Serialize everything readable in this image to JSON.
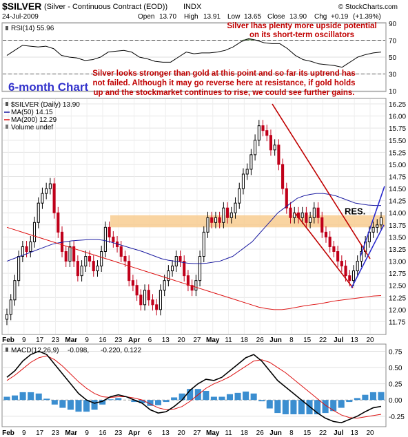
{
  "header": {
    "symbol": "$SILVER",
    "description": "(Silver - Continuous Contract (EOD))",
    "exchange": "INDX",
    "date": "24-Jul-2009",
    "quote": {
      "open_label": "Open",
      "open": "13.70",
      "high_label": "High",
      "high": "13.91",
      "low_label": "Low",
      "low": "13.65",
      "close_label": "Close",
      "close": "13.90",
      "chg_label": "Chg",
      "chg": "+0.19",
      "chg_pct": "(+1.39%)"
    },
    "watermark": "© StockCharts.com"
  },
  "annotations": {
    "rsi_note_1": "Silver lhas plenty more upside potential",
    "rsi_note_2": "on its short-term oscillators",
    "main_note_1": "Silver looks stronger than gold at this point and so far its uptrend has",
    "main_note_2": "not failed. Although it may go reverse here at resistance, if gold holds",
    "main_note_3": "up and the stockmarket continues to rise, we could see further gains.",
    "six_month": "6-month Chart",
    "res_label": "RES."
  },
  "legend": {
    "rsi": "RSI(14) 55.96",
    "price": "$SILVER (Daily) 13.90",
    "ma50": "MA(50) 14.15",
    "ma200": "MA(200) 12.29",
    "volume": "Volume undef",
    "macd_prefix": "MACD(12,26,9)",
    "macd_val": "-0.098,",
    "signal_val": "-0.220,",
    "hist_val": "0.122"
  },
  "colors": {
    "up": "#000000",
    "down": "#c0001a",
    "ma50": "#1a1aa0",
    "ma200": "#dd1111",
    "res_band": "#f7c98a",
    "channel_red": "#c00000",
    "channel_blue": "#2a2acc",
    "rsi_fill": "#4a7a3a",
    "hist": "#3b8ed0"
  },
  "chart_data": [
    {
      "type": "line",
      "title": "RSI(14)",
      "ylim": [
        10,
        90
      ],
      "y_ticks": [
        10,
        30,
        50,
        70,
        90
      ],
      "y_tick_labels": [
        "10",
        "30",
        "50",
        "70",
        "90"
      ],
      "overbought": 70,
      "oversold": 30,
      "values": [
        52,
        58,
        64,
        63,
        62,
        63,
        60,
        52,
        50,
        49,
        46,
        47,
        50,
        56,
        57,
        58,
        56,
        50,
        48,
        45,
        44,
        44,
        50,
        56,
        54,
        55,
        55,
        56,
        58,
        62,
        68,
        72,
        70,
        67,
        66,
        66,
        60,
        52,
        47,
        45,
        42,
        41,
        40,
        38,
        44,
        50,
        53,
        55,
        56
      ]
    },
    {
      "type": "candlestick",
      "title": "$SILVER (Daily)",
      "ylim": [
        11.5,
        16.35
      ],
      "y_ticks": [
        11.75,
        12.0,
        12.25,
        12.5,
        12.75,
        13.0,
        13.25,
        13.5,
        13.75,
        14.0,
        14.25,
        14.5,
        14.75,
        15.0,
        15.25,
        15.5,
        15.75,
        16.0,
        16.25
      ],
      "y_tick_labels": [
        "11.75",
        "12.00",
        "12.25",
        "12.50",
        "12.75",
        "13.00",
        "13.25",
        "13.50",
        "13.75",
        "14.00",
        "14.25",
        "14.50",
        "14.75",
        "15.00",
        "15.25",
        "15.50",
        "15.75",
        "16.00",
        "16.25"
      ],
      "x_tick_labels": [
        "Feb",
        "9",
        "17",
        "23",
        "Mar",
        "9",
        "16",
        "23",
        "Apr",
        "6",
        "13",
        "20",
        "27",
        "May",
        "11",
        "18",
        "26",
        "Jun",
        "8",
        "15",
        "22",
        "Jul",
        "13",
        "20"
      ],
      "resistance_band": [
        13.7,
        13.95
      ],
      "close": [
        11.9,
        12.2,
        12.6,
        13.1,
        13.3,
        13.2,
        13.4,
        13.8,
        14.2,
        14.4,
        14.5,
        14.6,
        14.0,
        13.6,
        13.2,
        13.0,
        13.3,
        13.0,
        12.7,
        12.9,
        13.1,
        13.0,
        12.8,
        12.9,
        13.2,
        13.7,
        13.5,
        13.4,
        13.3,
        13.1,
        13.0,
        12.6,
        12.5,
        12.3,
        12.1,
        12.4,
        12.2,
        12.1,
        12.0,
        12.4,
        12.6,
        12.8,
        12.9,
        13.1,
        13.0,
        12.7,
        12.5,
        12.4,
        12.6,
        13.1,
        13.6,
        13.9,
        13.8,
        13.9,
        13.8,
        14.1,
        13.9,
        14.0,
        14.2,
        14.5,
        14.8,
        14.9,
        15.2,
        15.5,
        15.8,
        15.7,
        15.6,
        15.3,
        15.4,
        15.0,
        14.5,
        14.1,
        13.9,
        14.0,
        13.9,
        14.0,
        13.8,
        13.9,
        14.1,
        13.9,
        13.6,
        13.5,
        13.3,
        13.2,
        13.0,
        12.9,
        12.7,
        12.6,
        12.8,
        13.0,
        13.2,
        13.4,
        13.6,
        13.7,
        13.75,
        13.9
      ],
      "ma50": [
        13.0,
        13.05,
        13.1,
        13.15,
        13.2,
        13.25,
        13.3,
        13.35,
        13.38,
        13.4,
        13.42,
        13.43,
        13.44,
        13.45,
        13.45,
        13.43,
        13.4,
        13.36,
        13.32,
        13.28,
        13.24,
        13.2,
        13.15,
        13.1,
        13.05,
        13.02,
        13.0,
        12.98,
        12.96,
        12.95,
        12.95,
        12.96,
        12.98,
        13.0,
        13.05,
        13.1,
        13.2,
        13.3,
        13.4,
        13.55,
        13.7,
        13.85,
        14.0,
        14.1,
        14.2,
        14.3,
        14.35,
        14.38,
        14.4,
        14.4,
        14.38,
        14.35,
        14.3,
        14.25,
        14.2,
        14.18,
        14.16,
        14.15,
        14.15
      ],
      "ma200": [
        13.7,
        13.65,
        13.6,
        13.55,
        13.5,
        13.45,
        13.4,
        13.35,
        13.3,
        13.25,
        13.2,
        13.15,
        13.1,
        13.05,
        13.0,
        12.95,
        12.9,
        12.85,
        12.8,
        12.75,
        12.7,
        12.65,
        12.6,
        12.55,
        12.5,
        12.45,
        12.4,
        12.35,
        12.3,
        12.25,
        12.2,
        12.15,
        12.1,
        12.05,
        12.02,
        12.0,
        12.0,
        12.02,
        12.05,
        12.08,
        12.1,
        12.12,
        12.15,
        12.18,
        12.2,
        12.22,
        12.24,
        12.26,
        12.28,
        12.29
      ]
    },
    {
      "type": "line",
      "title": "MACD(12,26,9)",
      "ylim": [
        -0.4,
        0.85
      ],
      "y_ticks": [
        -0.25,
        0.0,
        0.25,
        0.5,
        0.75
      ],
      "y_tick_labels": [
        "-0.25",
        "0.00",
        "0.25",
        "0.50",
        "0.75"
      ],
      "x_tick_labels": [
        "Feb",
        "9",
        "17",
        "23",
        "Mar",
        "9",
        "16",
        "23",
        "Apr",
        "6",
        "13",
        "20",
        "27",
        "May",
        "11",
        "18",
        "26",
        "Jun",
        "8",
        "15",
        "22",
        "Jul",
        "13",
        "20"
      ],
      "series": [
        {
          "name": "MACD",
          "values": [
            0.35,
            0.45,
            0.6,
            0.7,
            0.75,
            0.7,
            0.55,
            0.4,
            0.25,
            0.1,
            0.0,
            -0.05,
            -0.02,
            0.05,
            0.08,
            0.05,
            0.0,
            -0.05,
            -0.15,
            -0.2,
            -0.18,
            -0.1,
            0.0,
            0.15,
            0.25,
            0.32,
            0.3,
            0.35,
            0.45,
            0.55,
            0.65,
            0.7,
            0.6,
            0.45,
            0.3,
            0.2,
            0.1,
            0.0,
            -0.1,
            -0.2,
            -0.28,
            -0.33,
            -0.35,
            -0.3,
            -0.25,
            -0.18,
            -0.12,
            -0.098
          ]
        },
        {
          "name": "Signal",
          "values": [
            0.3,
            0.38,
            0.48,
            0.58,
            0.65,
            0.68,
            0.62,
            0.52,
            0.4,
            0.28,
            0.18,
            0.1,
            0.05,
            0.04,
            0.05,
            0.05,
            0.03,
            0.0,
            -0.06,
            -0.12,
            -0.15,
            -0.14,
            -0.1,
            -0.02,
            0.08,
            0.18,
            0.25,
            0.3,
            0.36,
            0.44,
            0.52,
            0.6,
            0.62,
            0.58,
            0.5,
            0.42,
            0.32,
            0.22,
            0.12,
            0.02,
            -0.08,
            -0.16,
            -0.23,
            -0.27,
            -0.28,
            -0.26,
            -0.24,
            -0.22
          ]
        },
        {
          "name": "Histogram",
          "values": [
            0.05,
            0.07,
            0.12,
            0.12,
            0.1,
            0.02,
            -0.07,
            -0.12,
            -0.15,
            -0.18,
            -0.18,
            -0.15,
            -0.07,
            0.01,
            0.03,
            0.0,
            -0.03,
            -0.05,
            -0.09,
            -0.08,
            -0.03,
            0.04,
            0.1,
            0.17,
            0.17,
            0.14,
            0.05,
            0.05,
            0.09,
            0.11,
            0.13,
            0.1,
            -0.02,
            -0.13,
            -0.2,
            -0.22,
            -0.22,
            -0.22,
            -0.22,
            -0.22,
            -0.2,
            -0.17,
            -0.12,
            -0.03,
            0.03,
            0.08,
            0.12,
            0.122
          ]
        }
      ]
    }
  ]
}
